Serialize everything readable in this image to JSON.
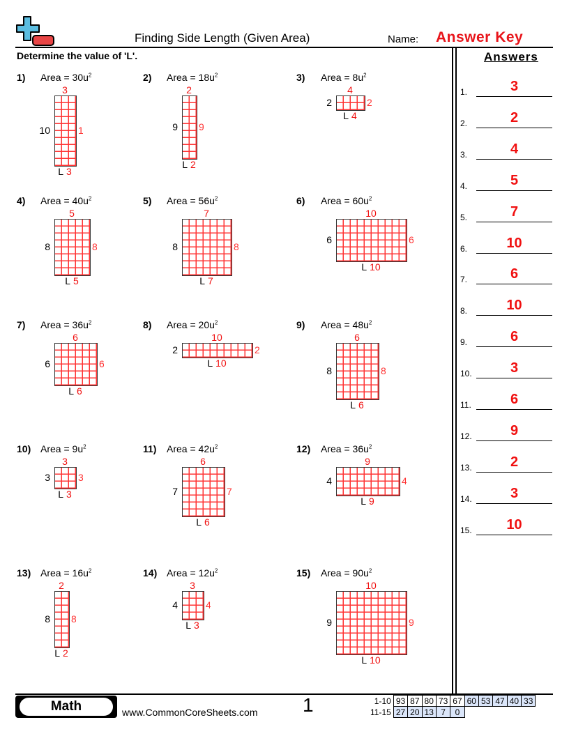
{
  "header": {
    "title": "Finding Side Length (Given Area)",
    "name_label": "Name:",
    "answer_key": "Answer Key",
    "instructions": "Determine the value of 'L'.",
    "logo": "plus-minus-logo"
  },
  "problems": [
    {
      "num": "1)",
      "area": "Area = 30u",
      "w": 3,
      "h": 10,
      "answer": "3"
    },
    {
      "num": "2)",
      "area": "Area = 18u",
      "w": 2,
      "h": 9,
      "answer": "2"
    },
    {
      "num": "3)",
      "area": "Area = 8u",
      "w": 4,
      "h": 2,
      "answer": "4"
    },
    {
      "num": "4)",
      "area": "Area = 40u",
      "w": 5,
      "h": 8,
      "answer": "5"
    },
    {
      "num": "5)",
      "area": "Area = 56u",
      "w": 7,
      "h": 8,
      "answer": "7"
    },
    {
      "num": "6)",
      "area": "Area = 60u",
      "w": 10,
      "h": 6,
      "answer": "10"
    },
    {
      "num": "7)",
      "area": "Area = 36u",
      "w": 6,
      "h": 6,
      "answer": "6"
    },
    {
      "num": "8)",
      "area": "Area = 20u",
      "w": 10,
      "h": 2,
      "answer": "10"
    },
    {
      "num": "9)",
      "area": "Area = 48u",
      "w": 6,
      "h": 8,
      "answer": "6"
    },
    {
      "num": "10)",
      "area": "Area = 9u",
      "w": 3,
      "h": 3,
      "answer": "3"
    },
    {
      "num": "11)",
      "area": "Area = 42u",
      "w": 6,
      "h": 7,
      "answer": "6"
    },
    {
      "num": "12)",
      "area": "Area = 36u",
      "w": 9,
      "h": 4,
      "answer": "9"
    },
    {
      "num": "13)",
      "area": "Area = 16u",
      "w": 2,
      "h": 8,
      "answer": "2"
    },
    {
      "num": "14)",
      "area": "Area = 12u",
      "w": 3,
      "h": 4,
      "answer": "3"
    },
    {
      "num": "15)",
      "area": "Area = 90u",
      "w": 10,
      "h": 9,
      "answer": "10"
    }
  ],
  "unit_exponent": "2",
  "side_label": "L",
  "answers_panel": {
    "title": "Answers",
    "items": [
      {
        "n": "1.",
        "v": "3"
      },
      {
        "n": "2.",
        "v": "2"
      },
      {
        "n": "3.",
        "v": "4"
      },
      {
        "n": "4.",
        "v": "5"
      },
      {
        "n": "5.",
        "v": "7"
      },
      {
        "n": "6.",
        "v": "10"
      },
      {
        "n": "7.",
        "v": "6"
      },
      {
        "n": "8.",
        "v": "10"
      },
      {
        "n": "9.",
        "v": "6"
      },
      {
        "n": "10.",
        "v": "3"
      },
      {
        "n": "11.",
        "v": "6"
      },
      {
        "n": "12.",
        "v": "9"
      },
      {
        "n": "13.",
        "v": "2"
      },
      {
        "n": "14.",
        "v": "3"
      },
      {
        "n": "15.",
        "v": "10"
      }
    ]
  },
  "footer": {
    "subject": "Math",
    "site": "www.CommonCoreSheets.com",
    "page": "1",
    "score_rows": [
      {
        "label": "1-10",
        "cells": [
          "93",
          "87",
          "80",
          "73",
          "67",
          "60",
          "53",
          "47",
          "40",
          "33"
        ]
      },
      {
        "label": "11-15",
        "cells": [
          "27",
          "20",
          "13",
          "7",
          "0"
        ]
      }
    ]
  },
  "colors": {
    "answer_red": "#f01010",
    "grid_red": "#ff3333",
    "score_blue": "#dbe6fa",
    "logo_blue": "#5bbde0",
    "logo_red": "#e84545"
  }
}
